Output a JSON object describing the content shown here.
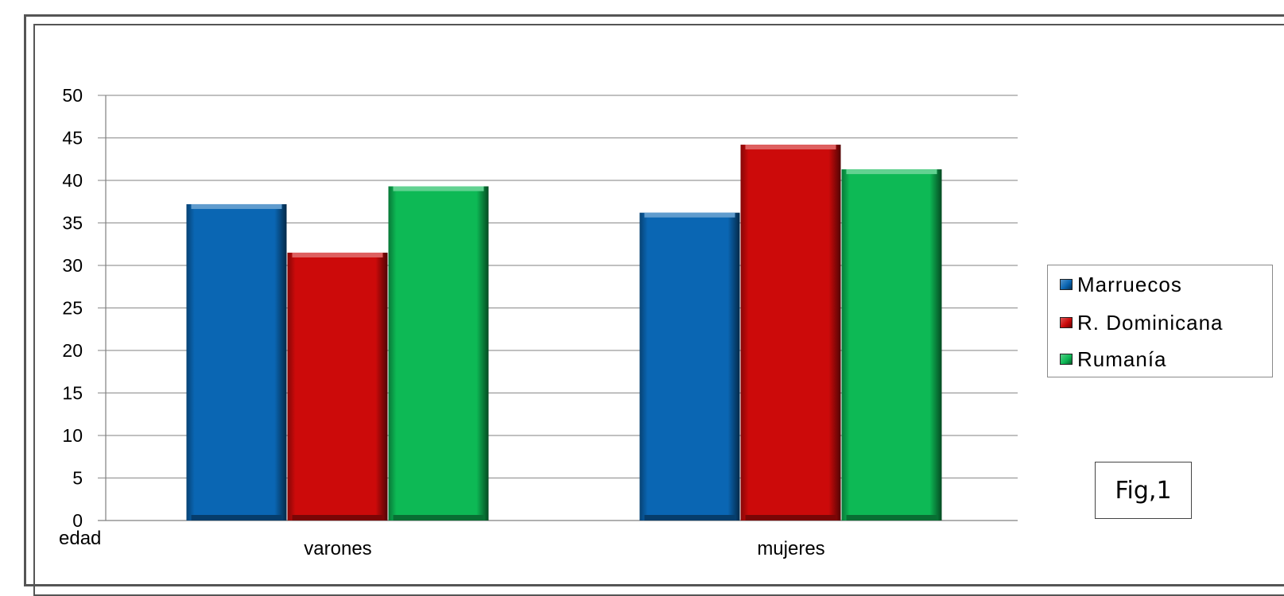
{
  "chart_data": {
    "type": "bar",
    "categories": [
      "varones",
      "mujeres"
    ],
    "series": [
      {
        "name": "Marruecos",
        "values": [
          37.2,
          36.2
        ],
        "color": "#0a66b3"
      },
      {
        "name": "R. Dominicana",
        "values": [
          31.5,
          44.2
        ],
        "color": "#cc0a0a"
      },
      {
        "name": "Rumanía",
        "values": [
          39.3,
          41.3
        ],
        "color": "#0db955"
      }
    ],
    "ylim": [
      0,
      50
    ],
    "yticks": [
      0,
      5,
      10,
      15,
      20,
      25,
      30,
      35,
      40,
      45,
      50
    ],
    "ylabel": "edad",
    "xlabel": "",
    "grid": true,
    "legend_position": "right"
  },
  "annotation": "Fig,1"
}
